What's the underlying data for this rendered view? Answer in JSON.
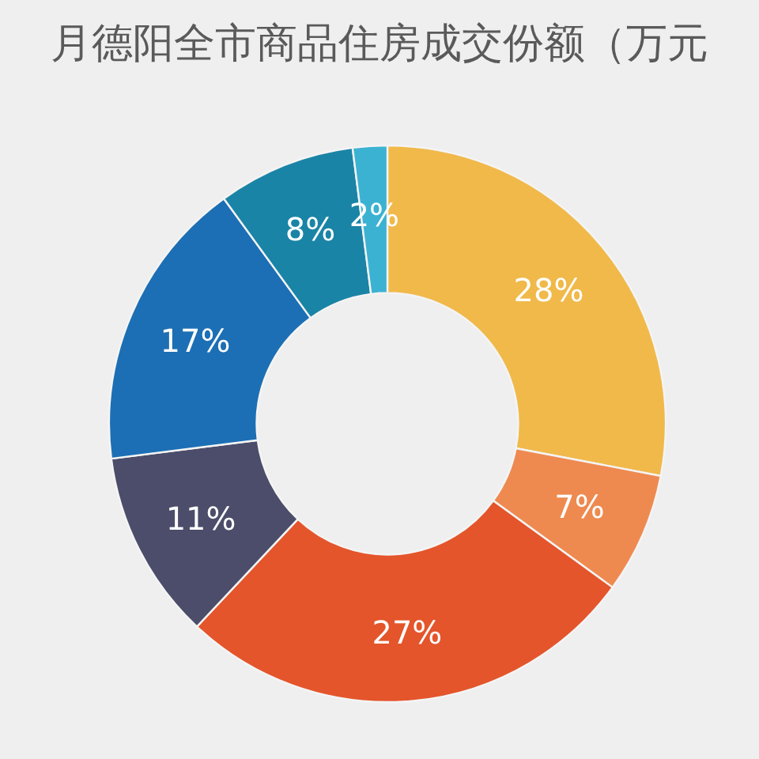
{
  "chart_data": {
    "type": "donut",
    "title": "月德阳全市商品住房成交份额（万元",
    "categories": [
      null,
      null,
      null,
      null,
      null,
      null,
      null
    ],
    "values": [
      28,
      7,
      27,
      11,
      17,
      8,
      2
    ],
    "value_labels": [
      "28%",
      "7%",
      "27%",
      "11%",
      "17%",
      "8%",
      "2%"
    ],
    "colors": [
      "#f0b94a",
      "#ee8a50",
      "#e4552b",
      "#4b4d6a",
      "#1c6fb4",
      "#1a84a6",
      "#3cb2d2"
    ]
  }
}
